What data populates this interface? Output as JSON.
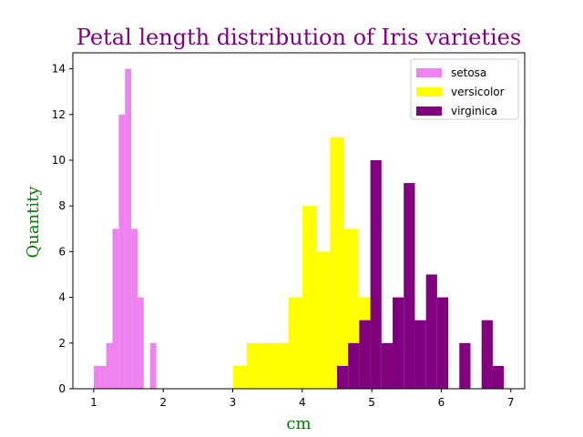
{
  "chart_data": {
    "type": "bar",
    "title": "Petal length distribution of Iris varieties",
    "xlabel": "cm",
    "ylabel": "Quantity",
    "xlim": [
      0.7,
      7.2
    ],
    "ylim": [
      0,
      14.7
    ],
    "xticks": [
      1,
      2,
      3,
      4,
      5,
      6,
      7
    ],
    "yticks": [
      0,
      2,
      4,
      6,
      8,
      10,
      12,
      14
    ],
    "grid": false,
    "legend_position": "top-right",
    "title_color": "#800080",
    "label_color": "#008000",
    "series": [
      {
        "name": "setosa",
        "color": "#ee82ee",
        "bin_edges": [
          1.0,
          1.09,
          1.18,
          1.27,
          1.36,
          1.45,
          1.54,
          1.63,
          1.72,
          1.81,
          1.9
        ],
        "counts": [
          1,
          1,
          2,
          7,
          12,
          14,
          7,
          4,
          0,
          2
        ]
      },
      {
        "name": "versicolor",
        "color": "#ffff00",
        "bin_edges": [
          3.0,
          3.2,
          3.4,
          3.6,
          3.8,
          4.0,
          4.2,
          4.4,
          4.6,
          4.8,
          5.0
        ],
        "counts": [
          1,
          2,
          2,
          2,
          4,
          8,
          6,
          11,
          7,
          4
        ]
      },
      {
        "name": "virginica",
        "color": "#800080",
        "bin_edges": [
          4.5,
          4.66,
          4.82,
          4.98,
          5.14,
          5.3,
          5.46,
          5.62,
          5.78,
          5.94,
          6.1,
          6.26,
          6.42,
          6.58,
          6.74,
          6.9
        ],
        "counts": [
          1,
          2,
          3,
          10,
          2,
          4,
          9,
          3,
          5,
          4,
          0,
          2,
          0,
          3,
          1
        ]
      }
    ]
  }
}
